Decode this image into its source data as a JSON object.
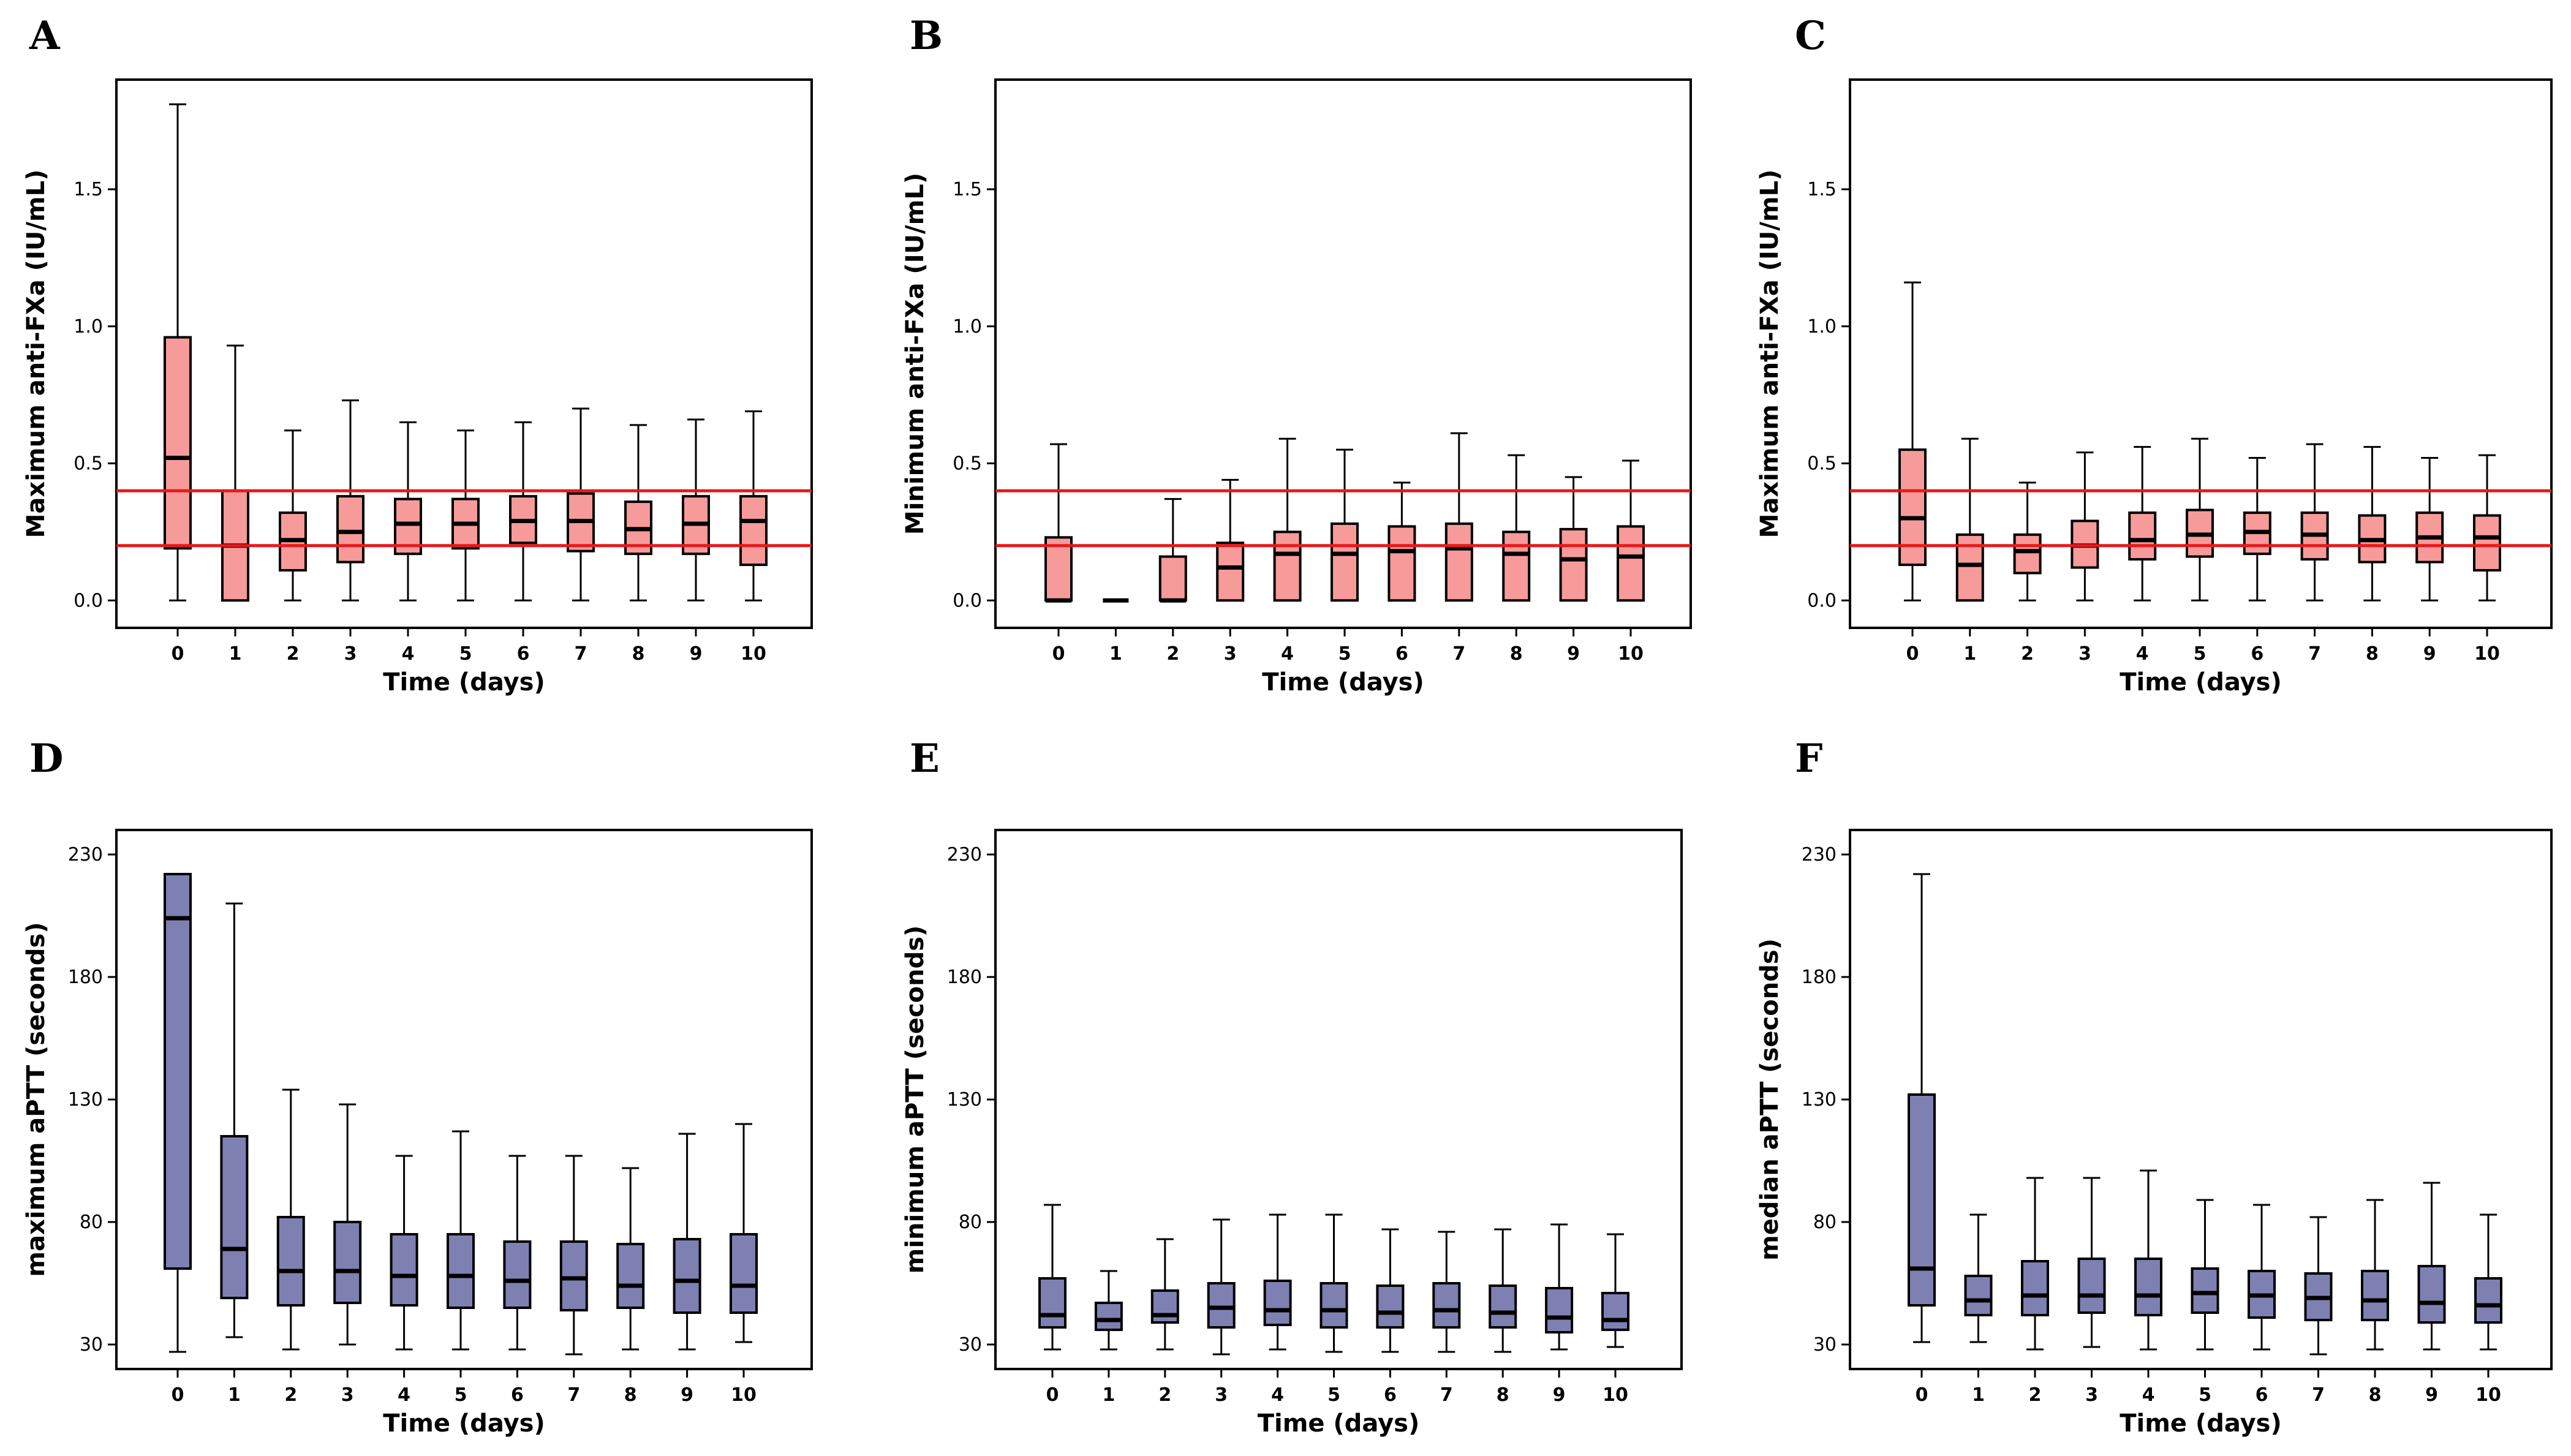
{
  "colors": {
    "anti_fxa_fill": "#F79A9A",
    "aptt_fill": "#7E80B2",
    "reference_line": "#E8191A",
    "stroke": "#000000"
  },
  "chart_data": [
    {
      "panel": "A",
      "type": "box",
      "xlabel": "Time (days)",
      "ylabel": "Maximum anti-FXa (IU/mL)",
      "categories": [
        "0",
        "1",
        "2",
        "3",
        "4",
        "5",
        "6",
        "7",
        "8",
        "9",
        "10"
      ],
      "ylim": [
        -0.1,
        1.9
      ],
      "yticks": [
        0.0,
        0.5,
        1.0,
        1.5
      ],
      "ytick_labels": [
        "0.0",
        "0.5",
        "1.0",
        "1.5"
      ],
      "fill": "pink",
      "reference_lines": [
        0.2,
        0.4
      ],
      "boxes": [
        {
          "min": 0.0,
          "q1": 0.19,
          "median": 0.52,
          "q3": 0.96,
          "max": 1.81
        },
        {
          "min": 0.0,
          "q1": 0.0,
          "median": 0.2,
          "q3": 0.4,
          "max": 0.93
        },
        {
          "min": 0.0,
          "q1": 0.11,
          "median": 0.22,
          "q3": 0.32,
          "max": 0.62
        },
        {
          "min": 0.0,
          "q1": 0.14,
          "median": 0.25,
          "q3": 0.38,
          "max": 0.73
        },
        {
          "min": 0.0,
          "q1": 0.17,
          "median": 0.28,
          "q3": 0.37,
          "max": 0.65
        },
        {
          "min": 0.0,
          "q1": 0.19,
          "median": 0.28,
          "q3": 0.37,
          "max": 0.62
        },
        {
          "min": 0.0,
          "q1": 0.21,
          "median": 0.29,
          "q3": 0.38,
          "max": 0.65
        },
        {
          "min": 0.0,
          "q1": 0.18,
          "median": 0.29,
          "q3": 0.39,
          "max": 0.7
        },
        {
          "min": 0.0,
          "q1": 0.17,
          "median": 0.26,
          "q3": 0.36,
          "max": 0.64
        },
        {
          "min": 0.0,
          "q1": 0.17,
          "median": 0.28,
          "q3": 0.38,
          "max": 0.66
        },
        {
          "min": 0.0,
          "q1": 0.13,
          "median": 0.29,
          "q3": 0.38,
          "max": 0.69
        }
      ]
    },
    {
      "panel": "B",
      "type": "box",
      "xlabel": "Time (days)",
      "ylabel": "Minimum anti-FXa (IU/mL)",
      "categories": [
        "0",
        "1",
        "2",
        "3",
        "4",
        "5",
        "6",
        "7",
        "8",
        "9",
        "10"
      ],
      "ylim": [
        -0.1,
        1.9
      ],
      "yticks": [
        0.0,
        0.5,
        1.0,
        1.5
      ],
      "ytick_labels": [
        "0.0",
        "0.5",
        "1.0",
        "1.5"
      ],
      "fill": "pink",
      "reference_lines": [
        0.2,
        0.4
      ],
      "boxes": [
        {
          "min": 0.0,
          "q1": 0.0,
          "median": 0.0,
          "q3": 0.23,
          "max": 0.57
        },
        {
          "min": 0.0,
          "q1": 0.0,
          "median": 0.0,
          "q3": 0.0,
          "max": 0.0
        },
        {
          "min": 0.0,
          "q1": 0.0,
          "median": 0.0,
          "q3": 0.16,
          "max": 0.37
        },
        {
          "min": 0.0,
          "q1": 0.0,
          "median": 0.12,
          "q3": 0.21,
          "max": 0.44
        },
        {
          "min": 0.0,
          "q1": 0.0,
          "median": 0.17,
          "q3": 0.25,
          "max": 0.59
        },
        {
          "min": 0.0,
          "q1": 0.0,
          "median": 0.17,
          "q3": 0.28,
          "max": 0.55
        },
        {
          "min": 0.0,
          "q1": 0.0,
          "median": 0.18,
          "q3": 0.27,
          "max": 0.43
        },
        {
          "min": 0.0,
          "q1": 0.0,
          "median": 0.19,
          "q3": 0.28,
          "max": 0.61
        },
        {
          "min": 0.0,
          "q1": 0.0,
          "median": 0.17,
          "q3": 0.25,
          "max": 0.53
        },
        {
          "min": 0.0,
          "q1": 0.0,
          "median": 0.15,
          "q3": 0.26,
          "max": 0.45
        },
        {
          "min": 0.0,
          "q1": 0.0,
          "median": 0.16,
          "q3": 0.27,
          "max": 0.51
        }
      ]
    },
    {
      "panel": "C",
      "type": "box",
      "xlabel": "Time (days)",
      "ylabel": "Maximum anti-FXa (IU/mL)",
      "categories": [
        "0",
        "1",
        "2",
        "3",
        "4",
        "5",
        "6",
        "7",
        "8",
        "9",
        "10"
      ],
      "ylim": [
        -0.1,
        1.9
      ],
      "yticks": [
        0.0,
        0.5,
        1.0,
        1.5
      ],
      "ytick_labels": [
        "0.0",
        "0.5",
        "1.0",
        "1.5"
      ],
      "fill": "pink",
      "reference_lines": [
        0.2,
        0.4
      ],
      "boxes": [
        {
          "min": 0.0,
          "q1": 0.13,
          "median": 0.3,
          "q3": 0.55,
          "max": 1.16
        },
        {
          "min": 0.0,
          "q1": 0.0,
          "median": 0.13,
          "q3": 0.24,
          "max": 0.59
        },
        {
          "min": 0.0,
          "q1": 0.1,
          "median": 0.18,
          "q3": 0.24,
          "max": 0.43
        },
        {
          "min": 0.0,
          "q1": 0.12,
          "median": 0.2,
          "q3": 0.29,
          "max": 0.54
        },
        {
          "min": 0.0,
          "q1": 0.15,
          "median": 0.22,
          "q3": 0.32,
          "max": 0.56
        },
        {
          "min": 0.0,
          "q1": 0.16,
          "median": 0.24,
          "q3": 0.33,
          "max": 0.59
        },
        {
          "min": 0.0,
          "q1": 0.17,
          "median": 0.25,
          "q3": 0.32,
          "max": 0.52
        },
        {
          "min": 0.0,
          "q1": 0.15,
          "median": 0.24,
          "q3": 0.32,
          "max": 0.57
        },
        {
          "min": 0.0,
          "q1": 0.14,
          "median": 0.22,
          "q3": 0.31,
          "max": 0.56
        },
        {
          "min": 0.0,
          "q1": 0.14,
          "median": 0.23,
          "q3": 0.32,
          "max": 0.52
        },
        {
          "min": 0.0,
          "q1": 0.11,
          "median": 0.23,
          "q3": 0.31,
          "max": 0.53
        }
      ]
    },
    {
      "panel": "D",
      "type": "box",
      "xlabel": "Time (days)",
      "ylabel": "maximum aPTT (seconds)",
      "categories": [
        "0",
        "1",
        "2",
        "3",
        "4",
        "5",
        "6",
        "7",
        "8",
        "9",
        "10"
      ],
      "ylim": [
        20,
        240
      ],
      "yticks": [
        30,
        80,
        130,
        180,
        230
      ],
      "ytick_labels": [
        "30",
        "80",
        "130",
        "180",
        "230"
      ],
      "fill": "purple",
      "reference_lines": [],
      "boxes": [
        {
          "min": 27,
          "q1": 61,
          "median": 204,
          "q3": 222,
          "max": 222
        },
        {
          "min": 33,
          "q1": 49,
          "median": 69,
          "q3": 115,
          "max": 210
        },
        {
          "min": 28,
          "q1": 46,
          "median": 60,
          "q3": 82,
          "max": 134
        },
        {
          "min": 30,
          "q1": 47,
          "median": 60,
          "q3": 80,
          "max": 128
        },
        {
          "min": 28,
          "q1": 46,
          "median": 58,
          "q3": 75,
          "max": 107
        },
        {
          "min": 28,
          "q1": 45,
          "median": 58,
          "q3": 75,
          "max": 117
        },
        {
          "min": 28,
          "q1": 45,
          "median": 56,
          "q3": 72,
          "max": 107
        },
        {
          "min": 26,
          "q1": 44,
          "median": 57,
          "q3": 72,
          "max": 107
        },
        {
          "min": 28,
          "q1": 45,
          "median": 54,
          "q3": 71,
          "max": 102
        },
        {
          "min": 28,
          "q1": 43,
          "median": 56,
          "q3": 73,
          "max": 116
        },
        {
          "min": 31,
          "q1": 43,
          "median": 54,
          "q3": 75,
          "max": 120
        }
      ]
    },
    {
      "panel": "E",
      "type": "box",
      "xlabel": "Time (days)",
      "ylabel": "minimum aPTT (seconds)",
      "categories": [
        "0",
        "1",
        "2",
        "3",
        "4",
        "5",
        "6",
        "7",
        "8",
        "9",
        "10"
      ],
      "ylim": [
        20,
        240
      ],
      "yticks": [
        30,
        80,
        130,
        180,
        230
      ],
      "ytick_labels": [
        "30",
        "80",
        "130",
        "180",
        "230"
      ],
      "fill": "purple",
      "reference_lines": [],
      "boxes": [
        {
          "min": 28,
          "q1": 37,
          "median": 42,
          "q3": 57,
          "max": 87
        },
        {
          "min": 28,
          "q1": 36,
          "median": 40,
          "q3": 47,
          "max": 60
        },
        {
          "min": 28,
          "q1": 39,
          "median": 42,
          "q3": 52,
          "max": 73
        },
        {
          "min": 26,
          "q1": 37,
          "median": 45,
          "q3": 55,
          "max": 81
        },
        {
          "min": 28,
          "q1": 38,
          "median": 44,
          "q3": 56,
          "max": 83
        },
        {
          "min": 27,
          "q1": 37,
          "median": 44,
          "q3": 55,
          "max": 83
        },
        {
          "min": 27,
          "q1": 37,
          "median": 43,
          "q3": 54,
          "max": 77
        },
        {
          "min": 27,
          "q1": 37,
          "median": 44,
          "q3": 55,
          "max": 76
        },
        {
          "min": 27,
          "q1": 37,
          "median": 43,
          "q3": 54,
          "max": 77
        },
        {
          "min": 28,
          "q1": 35,
          "median": 41,
          "q3": 53,
          "max": 79
        },
        {
          "min": 29,
          "q1": 36,
          "median": 40,
          "q3": 51,
          "max": 75
        }
      ]
    },
    {
      "panel": "F",
      "type": "box",
      "xlabel": "Time (days)",
      "ylabel": "median aPTT (seconds)",
      "categories": [
        "0",
        "1",
        "2",
        "3",
        "4",
        "5",
        "6",
        "7",
        "8",
        "9",
        "10"
      ],
      "ylim": [
        20,
        240
      ],
      "yticks": [
        30,
        80,
        130,
        180,
        230
      ],
      "ytick_labels": [
        "30",
        "80",
        "130",
        "180",
        "230"
      ],
      "fill": "purple",
      "reference_lines": [],
      "boxes": [
        {
          "min": 31,
          "q1": 46,
          "median": 61,
          "q3": 132,
          "max": 222
        },
        {
          "min": 31,
          "q1": 42,
          "median": 48,
          "q3": 58,
          "max": 83
        },
        {
          "min": 28,
          "q1": 42,
          "median": 50,
          "q3": 64,
          "max": 98
        },
        {
          "min": 29,
          "q1": 43,
          "median": 50,
          "q3": 65,
          "max": 98
        },
        {
          "min": 28,
          "q1": 42,
          "median": 50,
          "q3": 65,
          "max": 101
        },
        {
          "min": 28,
          "q1": 43,
          "median": 51,
          "q3": 61,
          "max": 89
        },
        {
          "min": 28,
          "q1": 41,
          "median": 50,
          "q3": 60,
          "max": 87
        },
        {
          "min": 26,
          "q1": 40,
          "median": 49,
          "q3": 59,
          "max": 82
        },
        {
          "min": 28,
          "q1": 40,
          "median": 48,
          "q3": 60,
          "max": 89
        },
        {
          "min": 28,
          "q1": 39,
          "median": 47,
          "q3": 62,
          "max": 96
        },
        {
          "min": 28,
          "q1": 39,
          "median": 46,
          "q3": 57,
          "max": 83
        }
      ]
    }
  ]
}
